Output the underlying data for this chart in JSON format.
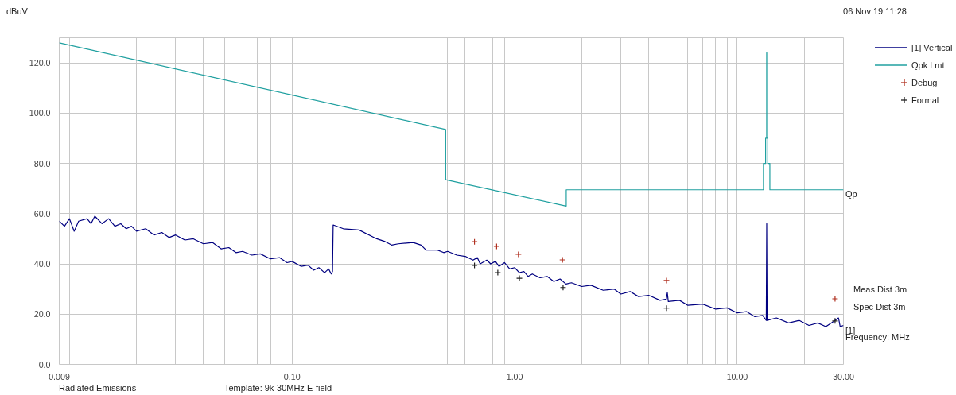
{
  "chart_data": {
    "type": "line",
    "xlabel": "Frequency: MHz",
    "ylabel": "dBuV",
    "log": "x",
    "xlim": [
      0.009,
      30
    ],
    "ylim": [
      0,
      130
    ],
    "xticks": [
      {
        "value": 0.009,
        "label": "0.009"
      },
      {
        "value": 0.01,
        "label": null
      },
      {
        "value": 0.02,
        "label": null
      },
      {
        "value": 0.03,
        "label": null
      },
      {
        "value": 0.04,
        "label": null
      },
      {
        "value": 0.05,
        "label": null
      },
      {
        "value": 0.06,
        "label": null
      },
      {
        "value": 0.07,
        "label": null
      },
      {
        "value": 0.08,
        "label": null
      },
      {
        "value": 0.09,
        "label": null
      },
      {
        "value": 0.1,
        "label": "0.10"
      },
      {
        "value": 0.2,
        "label": null
      },
      {
        "value": 0.3,
        "label": null
      },
      {
        "value": 0.4,
        "label": null
      },
      {
        "value": 0.5,
        "label": null
      },
      {
        "value": 0.6,
        "label": null
      },
      {
        "value": 0.7,
        "label": null
      },
      {
        "value": 0.8,
        "label": null
      },
      {
        "value": 0.9,
        "label": null
      },
      {
        "value": 1,
        "label": "1.00"
      },
      {
        "value": 2,
        "label": null
      },
      {
        "value": 3,
        "label": null
      },
      {
        "value": 4,
        "label": null
      },
      {
        "value": 5,
        "label": null
      },
      {
        "value": 6,
        "label": null
      },
      {
        "value": 7,
        "label": null
      },
      {
        "value": 8,
        "label": null
      },
      {
        "value": 9,
        "label": null
      },
      {
        "value": 10,
        "label": "10.00"
      },
      {
        "value": 20,
        "label": null
      },
      {
        "value": 30,
        "label": "30.00"
      }
    ],
    "yticks": [
      {
        "value": 0,
        "label": "0.0"
      },
      {
        "value": 20,
        "label": "20.0"
      },
      {
        "value": 40,
        "label": "40.0"
      },
      {
        "value": 60,
        "label": "60.0"
      },
      {
        "value": 80,
        "label": "80.0"
      },
      {
        "value": 100,
        "label": "100.0"
      },
      {
        "value": 120,
        "label": "120.0"
      }
    ],
    "grid": true,
    "legend": "top right",
    "series": [
      {
        "name": "[1] Vertical",
        "color": "#000080",
        "x": [
          0.009,
          0.0095,
          0.01,
          0.0105,
          0.011,
          0.012,
          0.0125,
          0.013,
          0.014,
          0.015,
          0.016,
          0.017,
          0.018,
          0.019,
          0.02,
          0.022,
          0.024,
          0.026,
          0.028,
          0.03,
          0.033,
          0.036,
          0.04,
          0.044,
          0.048,
          0.052,
          0.056,
          0.06,
          0.066,
          0.072,
          0.08,
          0.088,
          0.095,
          0.1,
          0.11,
          0.118,
          0.125,
          0.132,
          0.14,
          0.146,
          0.15,
          0.152,
          0.153,
          0.17,
          0.2,
          0.24,
          0.26,
          0.28,
          0.3,
          0.35,
          0.38,
          0.4,
          0.45,
          0.48,
          0.5,
          0.55,
          0.6,
          0.65,
          0.68,
          0.7,
          0.75,
          0.78,
          0.82,
          0.85,
          0.9,
          0.95,
          1.0,
          1.05,
          1.1,
          1.15,
          1.2,
          1.3,
          1.4,
          1.5,
          1.6,
          1.7,
          1.8,
          2.0,
          2.2,
          2.5,
          2.8,
          3.0,
          3.3,
          3.6,
          4.0,
          4.5,
          4.8,
          4.85,
          4.9,
          5.5,
          6,
          7,
          8,
          9,
          10,
          11,
          12,
          13,
          13.5,
          13.56,
          13.62,
          15,
          17,
          19,
          21,
          23,
          25,
          27,
          28.5,
          29,
          30
        ],
        "values": [
          57,
          55,
          58,
          53,
          57,
          58,
          56,
          59,
          56,
          58,
          55,
          56,
          54,
          55,
          53,
          54,
          51.5,
          52.5,
          50.5,
          51.5,
          49.5,
          50,
          48,
          48.5,
          46,
          46.5,
          44.5,
          45,
          43.5,
          44,
          42,
          42.5,
          40.5,
          41,
          39,
          39.5,
          37.5,
          38.5,
          36.5,
          38,
          36,
          37,
          55.5,
          54,
          53.5,
          50,
          49,
          47.5,
          48,
          48.5,
          47.5,
          45.5,
          45.5,
          44.5,
          45,
          43.5,
          43,
          41.5,
          42.5,
          40,
          41.5,
          40,
          41,
          39,
          40.5,
          38,
          38.5,
          36.5,
          37,
          35,
          36,
          34.5,
          35,
          33,
          34,
          32,
          32.5,
          31,
          31.5,
          29.5,
          30,
          28,
          29,
          27,
          27.5,
          25.5,
          26,
          28.5,
          25,
          25.5,
          23.5,
          24,
          22,
          22.5,
          20.5,
          21,
          19,
          19.5,
          17.5,
          56,
          17.5,
          18.5,
          16.5,
          17.5,
          15.5,
          16.5,
          15,
          17,
          18.5,
          15,
          15.5
        ]
      },
      {
        "name": "Qpk Lmt",
        "color": "#20a0a0",
        "x": [
          0.009,
          0.49,
          0.49,
          1.705,
          1.705,
          13.11,
          13.11,
          13.41,
          13.41,
          13.553,
          13.553,
          13.567,
          13.567,
          13.71,
          13.71,
          14.01,
          14.01,
          30
        ],
        "values": [
          128,
          93.5,
          73.5,
          63,
          69.5,
          69.5,
          80,
          80,
          90,
          90,
          124,
          124,
          90,
          90,
          80,
          80,
          69.5,
          69.5
        ]
      },
      {
        "name": "Debug",
        "type": "scatter",
        "marker": "cross",
        "color": "#b03020",
        "x": [
          0.66,
          0.83,
          1.04,
          1.64,
          4.81,
          27.5
        ],
        "values": [
          48.8,
          47,
          43.8,
          41.6,
          33.4,
          26.1
        ]
      },
      {
        "name": "Formal",
        "type": "scatter",
        "marker": "cross",
        "color": "#202020",
        "x": [
          0.66,
          0.84,
          1.05,
          1.65,
          4.81,
          27.5
        ],
        "values": [
          39.4,
          36.5,
          34.3,
          30.6,
          22.4,
          17.3
        ]
      }
    ],
    "annotations": [
      "06 Nov 19 11:28",
      "Meas Dist 3m",
      "Spec Dist 3m",
      "Radiated Emissions",
      "Template: 9k-30MHz E-field",
      {
        "text": "Qp",
        "x": 30,
        "y": 69.5
      },
      {
        "text": "[1]",
        "x": 30,
        "y": 15
      }
    ]
  }
}
